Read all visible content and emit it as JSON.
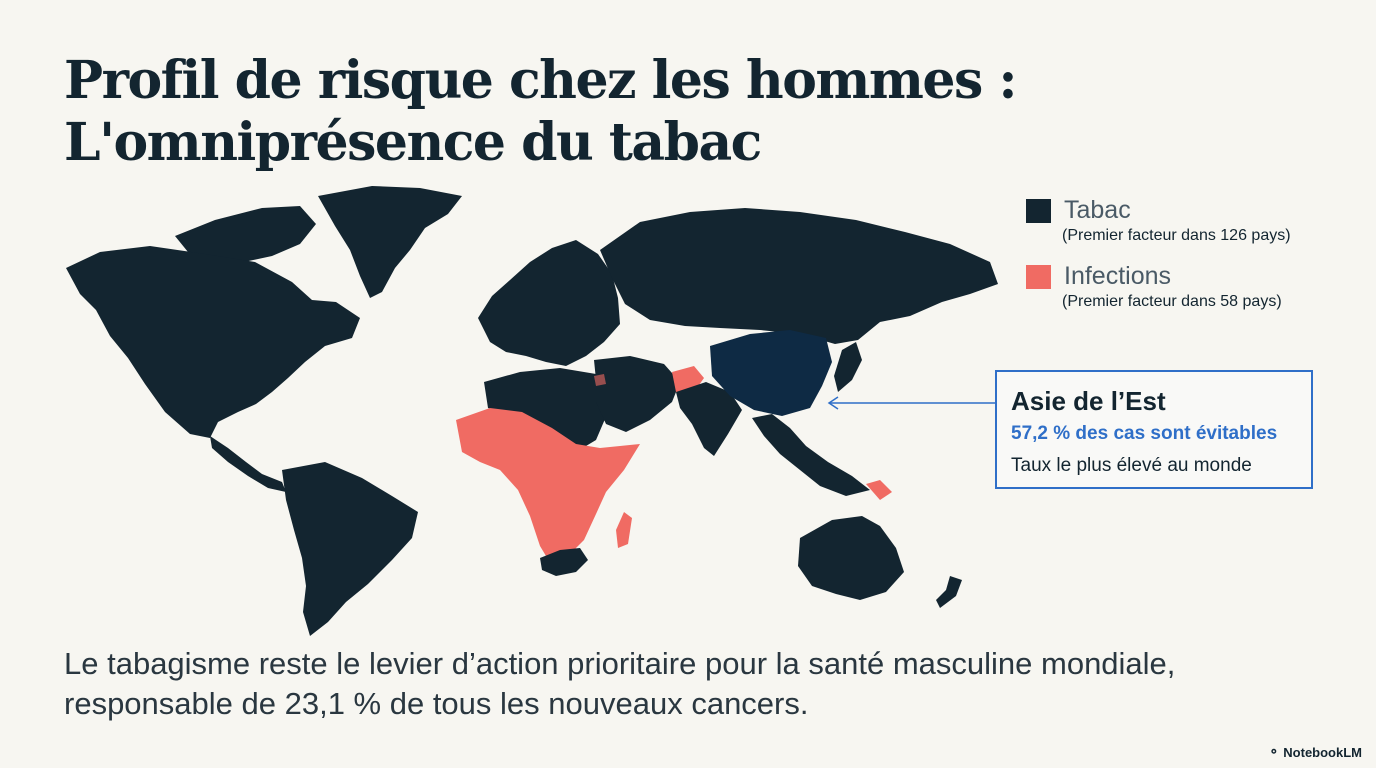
{
  "title": {
    "line1": "Profil de risque chez les hommes :",
    "line2": "L'omniprésence du tabac"
  },
  "legend": {
    "items": [
      {
        "label": "Tabac",
        "note": "(Premier facteur dans 126 pays)",
        "color": "#132530"
      },
      {
        "label": "Infections",
        "note": "(Premier facteur dans 58 pays)",
        "color": "#f06b63"
      }
    ]
  },
  "callout": {
    "title": "Asie de l’Est",
    "stat": "57,2 % des cas sont évitables",
    "note": "Taux le plus élevé au monde",
    "accent_color": "#2f6fc8"
  },
  "caption": {
    "line1": "Le tabagisme reste le levier d’action prioritaire pour la santé masculine mondiale,",
    "line2": "responsable de 23,1 % de tous les nouveaux cancers."
  },
  "brand": {
    "icon": "notebooklm-icon",
    "label": "NotebookLM"
  },
  "map": {
    "categories": {
      "tabac": "#132530",
      "infections": "#f06b63",
      "east_asia_highlight": "#0e2a44"
    }
  }
}
